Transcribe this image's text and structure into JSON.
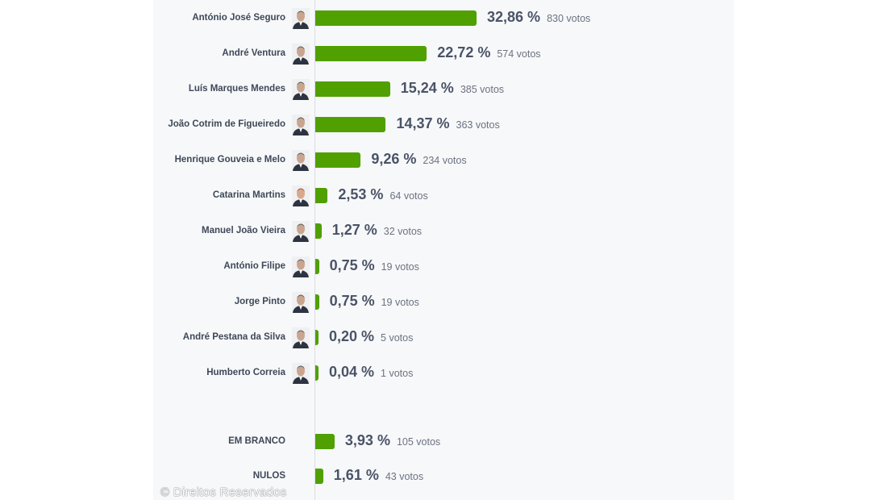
{
  "chart_data": {
    "type": "bar",
    "orientation": "horizontal",
    "categories": [
      "António José Seguro",
      "André Ventura",
      "Luís Marques Mendes",
      "João Cotrim de Figueiredo",
      "Henrique Gouveia e Melo",
      "Catarina Martins",
      "Manuel João Vieira",
      "António Filipe",
      "Jorge Pinto",
      "André Pestana da Silva",
      "Humberto Correia",
      "EM BRANCO",
      "NULOS"
    ],
    "values": [
      32.86,
      22.72,
      15.24,
      14.37,
      9.26,
      2.53,
      1.27,
      0.75,
      0.75,
      0.2,
      0.04,
      3.93,
      1.61
    ],
    "percent_labels": [
      "32,86 %",
      "22,72 %",
      "15,24 %",
      "14,37 %",
      "9,26 %",
      "2,53 %",
      "1,27 %",
      "0,75 %",
      "0,75 %",
      "0,20 %",
      "0,04 %",
      "3,93 %",
      "1,61 %"
    ],
    "vote_labels": [
      "830 votos",
      "574 votos",
      "385 votos",
      "363 votos",
      "234 votos",
      "64 votos",
      "32 votos",
      "19 votos",
      "19 votos",
      "5 votos",
      "1 votos",
      "105 votos",
      "43 votos"
    ],
    "has_photo": [
      true,
      true,
      true,
      true,
      true,
      true,
      true,
      true,
      true,
      true,
      true,
      false,
      false
    ],
    "bar_color": "#4fa000",
    "title": "",
    "xlabel": "",
    "ylabel": "",
    "grid": false
  },
  "copyright": "© Direitos Reservados"
}
